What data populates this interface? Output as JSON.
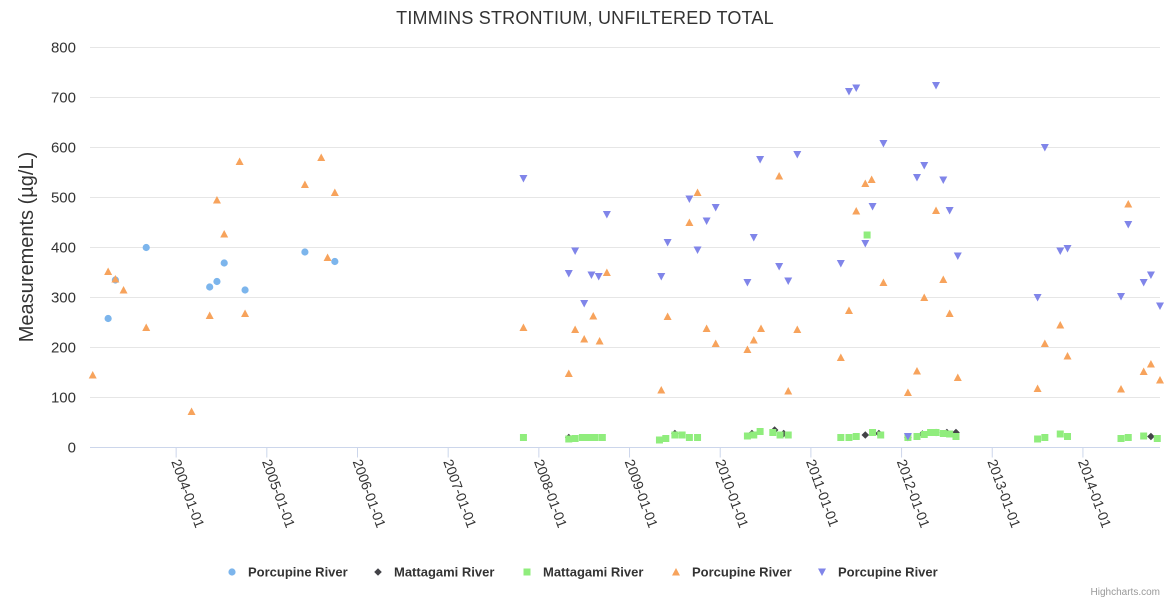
{
  "chart_data": {
    "type": "scatter",
    "title": "TIMMINS STRONTIUM, UNFILTERED TOTAL",
    "xlabel": "",
    "ylabel": "Measurements (µg/L)",
    "ylim": [
      0,
      800
    ],
    "yticks": [
      "0",
      "100",
      "200",
      "300",
      "400",
      "500",
      "600",
      "700",
      "800"
    ],
    "xlim": [
      2003.05,
      2014.85
    ],
    "xticks": [
      {
        "label": "2004-01-01",
        "x": 2004.0
      },
      {
        "label": "2005-01-01",
        "x": 2005.0
      },
      {
        "label": "2006-01-01",
        "x": 2006.0
      },
      {
        "label": "2007-01-01",
        "x": 2007.0
      },
      {
        "label": "2008-01-01",
        "x": 2008.0
      },
      {
        "label": "2009-01-01",
        "x": 2009.0
      },
      {
        "label": "2010-01-01",
        "x": 2010.0
      },
      {
        "label": "2011-01-01",
        "x": 2011.0
      },
      {
        "label": "2012-01-01",
        "x": 2012.0
      },
      {
        "label": "2013-01-01",
        "x": 2013.0
      },
      {
        "label": "2014-01-01",
        "x": 2014.0
      }
    ],
    "series": [
      {
        "name": "Porcupine River",
        "marker": "circle",
        "color": "#7cb5ec",
        "points": [
          [
            2003.25,
            258
          ],
          [
            2003.33,
            335
          ],
          [
            2003.67,
            400
          ],
          [
            2004.37,
            321
          ],
          [
            2004.45,
            332
          ],
          [
            2004.53,
            369
          ],
          [
            2004.76,
            315
          ],
          [
            2005.42,
            391
          ],
          [
            2005.75,
            372
          ]
        ]
      },
      {
        "name": "Mattagami River",
        "marker": "diamond",
        "color": "#434348",
        "points": [
          [
            2008.33,
            20
          ],
          [
            2009.5,
            28
          ],
          [
            2010.35,
            28
          ],
          [
            2010.6,
            35
          ],
          [
            2010.7,
            28
          ],
          [
            2011.6,
            25
          ],
          [
            2011.75,
            28
          ],
          [
            2012.07,
            20
          ],
          [
            2012.23,
            27
          ],
          [
            2012.38,
            30
          ],
          [
            2012.5,
            30
          ],
          [
            2012.6,
            30
          ],
          [
            2014.75,
            22
          ]
        ]
      },
      {
        "name": "Mattagami River",
        "marker": "square",
        "color": "#90ed7d",
        "points": [
          [
            2007.83,
            20
          ],
          [
            2008.33,
            17
          ],
          [
            2008.4,
            18
          ],
          [
            2008.48,
            20
          ],
          [
            2008.55,
            20
          ],
          [
            2008.62,
            20
          ],
          [
            2008.7,
            20
          ],
          [
            2009.33,
            15
          ],
          [
            2009.4,
            18
          ],
          [
            2009.5,
            25
          ],
          [
            2009.58,
            25
          ],
          [
            2009.66,
            20
          ],
          [
            2009.75,
            20
          ],
          [
            2010.3,
            23
          ],
          [
            2010.37,
            25
          ],
          [
            2010.44,
            32
          ],
          [
            2010.58,
            30
          ],
          [
            2010.66,
            25
          ],
          [
            2010.75,
            25
          ],
          [
            2011.33,
            20
          ],
          [
            2011.42,
            20
          ],
          [
            2011.5,
            22
          ],
          [
            2011.62,
            425
          ],
          [
            2011.68,
            30
          ],
          [
            2011.77,
            25
          ],
          [
            2012.07,
            20
          ],
          [
            2012.17,
            22
          ],
          [
            2012.25,
            26
          ],
          [
            2012.32,
            30
          ],
          [
            2012.38,
            30
          ],
          [
            2012.46,
            28
          ],
          [
            2012.53,
            27
          ],
          [
            2012.6,
            22
          ],
          [
            2013.5,
            17
          ],
          [
            2013.58,
            20
          ],
          [
            2013.75,
            27
          ],
          [
            2013.83,
            22
          ],
          [
            2014.42,
            18
          ],
          [
            2014.5,
            20
          ],
          [
            2014.67,
            23
          ],
          [
            2014.82,
            18
          ]
        ]
      },
      {
        "name": "Porcupine River",
        "marker": "triangle",
        "color": "#f7a35c",
        "points": [
          [
            2003.08,
            145
          ],
          [
            2003.25,
            352
          ],
          [
            2003.33,
            337
          ],
          [
            2003.42,
            315
          ],
          [
            2003.67,
            240
          ],
          [
            2004.17,
            72
          ],
          [
            2004.37,
            264
          ],
          [
            2004.45,
            495
          ],
          [
            2004.53,
            427
          ],
          [
            2004.7,
            572
          ],
          [
            2004.76,
            268
          ],
          [
            2005.42,
            526
          ],
          [
            2005.6,
            580
          ],
          [
            2005.67,
            380
          ],
          [
            2005.75,
            510
          ],
          [
            2007.83,
            240
          ],
          [
            2008.33,
            148
          ],
          [
            2008.4,
            236
          ],
          [
            2008.5,
            217
          ],
          [
            2008.6,
            263
          ],
          [
            2008.67,
            213
          ],
          [
            2008.75,
            350
          ],
          [
            2009.35,
            115
          ],
          [
            2009.42,
            262
          ],
          [
            2009.66,
            450
          ],
          [
            2009.75,
            510
          ],
          [
            2009.85,
            238
          ],
          [
            2009.95,
            208
          ],
          [
            2010.3,
            196
          ],
          [
            2010.37,
            215
          ],
          [
            2010.45,
            238
          ],
          [
            2010.65,
            543
          ],
          [
            2010.75,
            113
          ],
          [
            2010.85,
            236
          ],
          [
            2011.33,
            180
          ],
          [
            2011.42,
            274
          ],
          [
            2011.5,
            473
          ],
          [
            2011.6,
            528
          ],
          [
            2011.67,
            536
          ],
          [
            2011.8,
            330
          ],
          [
            2012.07,
            110
          ],
          [
            2012.17,
            153
          ],
          [
            2012.25,
            300
          ],
          [
            2012.38,
            474
          ],
          [
            2012.46,
            336
          ],
          [
            2012.53,
            268
          ],
          [
            2012.62,
            140
          ],
          [
            2013.5,
            118
          ],
          [
            2013.58,
            208
          ],
          [
            2013.75,
            245
          ],
          [
            2013.83,
            183
          ],
          [
            2014.42,
            117
          ],
          [
            2014.5,
            487
          ],
          [
            2014.67,
            152
          ],
          [
            2014.75,
            167
          ],
          [
            2014.85,
            135
          ]
        ]
      },
      {
        "name": "Porcupine River",
        "marker": "triangle-down",
        "color": "#8085e9",
        "points": [
          [
            2007.83,
            538
          ],
          [
            2008.33,
            348
          ],
          [
            2008.4,
            393
          ],
          [
            2008.5,
            288
          ],
          [
            2008.58,
            345
          ],
          [
            2008.66,
            342
          ],
          [
            2008.75,
            466
          ],
          [
            2009.35,
            342
          ],
          [
            2009.42,
            410
          ],
          [
            2009.66,
            497
          ],
          [
            2009.75,
            395
          ],
          [
            2009.85,
            453
          ],
          [
            2009.95,
            480
          ],
          [
            2010.3,
            330
          ],
          [
            2010.37,
            420
          ],
          [
            2010.44,
            576
          ],
          [
            2010.65,
            362
          ],
          [
            2010.75,
            333
          ],
          [
            2010.85,
            586
          ],
          [
            2011.33,
            368
          ],
          [
            2011.42,
            712
          ],
          [
            2011.5,
            719
          ],
          [
            2011.6,
            408
          ],
          [
            2011.68,
            482
          ],
          [
            2011.8,
            608
          ],
          [
            2012.07,
            22
          ],
          [
            2012.17,
            540
          ],
          [
            2012.25,
            564
          ],
          [
            2012.38,
            724
          ],
          [
            2012.46,
            535
          ],
          [
            2012.53,
            474
          ],
          [
            2012.62,
            383
          ],
          [
            2013.5,
            300
          ],
          [
            2013.58,
            600
          ],
          [
            2013.75,
            393
          ],
          [
            2013.83,
            398
          ],
          [
            2014.42,
            302
          ],
          [
            2014.5,
            446
          ],
          [
            2014.67,
            330
          ],
          [
            2014.75,
            345
          ],
          [
            2014.85,
            283
          ]
        ]
      }
    ]
  },
  "credits": "Highcharts.com"
}
